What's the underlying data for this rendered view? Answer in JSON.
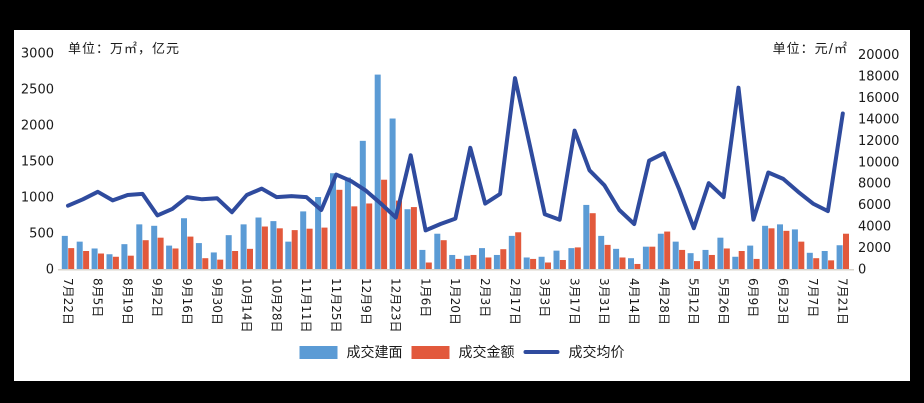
{
  "chart_data": {
    "type": "combo-bar-line",
    "x_tick_labels": [
      "7月22日",
      "8月5日",
      "8月19日",
      "9月2日",
      "9月16日",
      "9月30日",
      "10月14日",
      "10月28日",
      "11月11日",
      "11月25日",
      "12月9日",
      "12月23日",
      "1月6日",
      "1月20日",
      "2月3日",
      "2月17日",
      "3月3日",
      "3月17日",
      "3月31日",
      "4月14日",
      "4月28日",
      "5月12日",
      "5月26日",
      "6月9日",
      "6月23日",
      "7月7日",
      "7月21日"
    ],
    "x_tick_every": 2,
    "n_points": 53,
    "left_axis": {
      "title": "单位：万㎡，亿元",
      "min": 0,
      "max": 3000,
      "step": 500
    },
    "right_axis": {
      "title": "单位：元/㎡",
      "min": 0,
      "max": 20000,
      "step": 2000
    },
    "grid": "off",
    "legend_position": "bottom-center",
    "series": [
      {
        "name": "成交建面",
        "type": "bar",
        "axis": "left",
        "color": "#5B9BD5",
        "values": [
          460,
          380,
          285,
          205,
          345,
          620,
          600,
          325,
          705,
          360,
          230,
          470,
          620,
          715,
          665,
          380,
          800,
          1000,
          1330,
          1270,
          1780,
          2700,
          2090,
          830,
          265,
          490,
          195,
          185,
          290,
          195,
          460,
          160,
          170,
          255,
          290,
          890,
          460,
          280,
          150,
          310,
          490,
          380,
          220,
          265,
          435,
          170,
          325,
          600,
          620,
          550,
          225,
          250,
          330
        ]
      },
      {
        "name": "成交金额",
        "type": "bar",
        "axis": "left",
        "color": "#E2593C",
        "values": [
          290,
          250,
          215,
          170,
          185,
          400,
          435,
          285,
          450,
          150,
          130,
          250,
          280,
          590,
          565,
          540,
          560,
          575,
          1100,
          870,
          910,
          1240,
          950,
          860,
          90,
          400,
          140,
          195,
          160,
          275,
          510,
          140,
          90,
          125,
          300,
          775,
          335,
          160,
          70,
          310,
          520,
          265,
          110,
          195,
          285,
          250,
          140,
          565,
          530,
          380,
          150,
          120,
          490
        ]
      },
      {
        "name": "成交均价",
        "type": "line",
        "axis": "right",
        "color": "#2F4B9E",
        "values": [
          5900,
          6500,
          7200,
          6400,
          6900,
          7000,
          5000,
          5600,
          6700,
          6500,
          6600,
          5300,
          6900,
          7500,
          6700,
          6800,
          6700,
          5500,
          8800,
          8200,
          7300,
          6100,
          4800,
          10600,
          3600,
          4200,
          4700,
          11300,
          6100,
          7000,
          17800,
          11500,
          5100,
          4600,
          12900,
          9200,
          7800,
          5500,
          4200,
          10100,
          10800,
          7500,
          3800,
          8000,
          6700,
          16900,
          4600,
          9000,
          8400,
          7200,
          6100,
          5400,
          14500
        ]
      }
    ],
    "axis_line_color": "#d9d4cc",
    "tick_label_color": "#1a1a1a"
  }
}
